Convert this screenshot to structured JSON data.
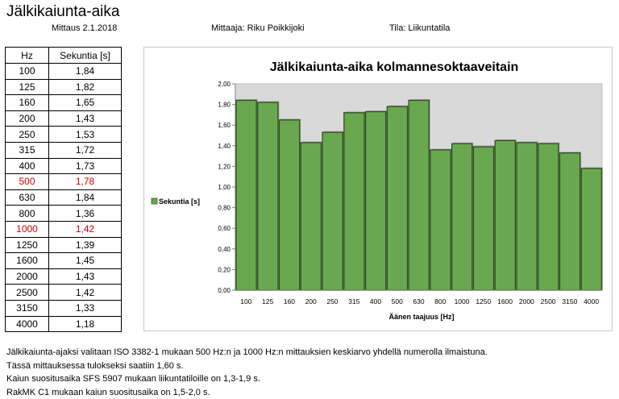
{
  "header": {
    "title": "Jälkikaiunta-aika",
    "date": "Mittaus 2.1.2018",
    "measurer": "Mittaaja: Riku Poikkijoki",
    "room": "Tila: Liikuntatila"
  },
  "table": {
    "col_hz": "Hz",
    "col_sec": "Sekuntia [s]",
    "rows": [
      {
        "hz": "100",
        "sec": "1,84"
      },
      {
        "hz": "125",
        "sec": "1,82"
      },
      {
        "hz": "160",
        "sec": "1,65"
      },
      {
        "hz": "200",
        "sec": "1,43"
      },
      {
        "hz": "250",
        "sec": "1,53"
      },
      {
        "hz": "315",
        "sec": "1,72"
      },
      {
        "hz": "400",
        "sec": "1,73"
      },
      {
        "hz": "500",
        "sec": "1,78"
      },
      {
        "hz": "630",
        "sec": "1,84"
      },
      {
        "hz": "800",
        "sec": "1,36"
      },
      {
        "hz": "1000",
        "sec": "1,42"
      },
      {
        "hz": "1250",
        "sec": "1,39"
      },
      {
        "hz": "1600",
        "sec": "1,45"
      },
      {
        "hz": "2000",
        "sec": "1,43"
      },
      {
        "hz": "2500",
        "sec": "1,42"
      },
      {
        "hz": "3150",
        "sec": "1,33"
      },
      {
        "hz": "4000",
        "sec": "1,18"
      }
    ],
    "highlight_color": "#d40000",
    "highlight_rows": [
      "500",
      "1000"
    ]
  },
  "chart_data": {
    "type": "bar",
    "title": "Jälkikaiunta-aika kolmannesoktaaveitain",
    "xlabel": "Äänen taajuus [Hz]",
    "ylabel": "",
    "categories": [
      "100",
      "125",
      "160",
      "200",
      "250",
      "315",
      "400",
      "500",
      "630",
      "800",
      "1000",
      "1250",
      "1600",
      "2000",
      "2500",
      "3150",
      "4000"
    ],
    "series": [
      {
        "name": "Sekuntia [s]",
        "values": [
          1.84,
          1.82,
          1.65,
          1.43,
          1.53,
          1.72,
          1.73,
          1.78,
          1.84,
          1.36,
          1.42,
          1.39,
          1.45,
          1.43,
          1.42,
          1.33,
          1.18
        ],
        "color": "#6aa84f"
      }
    ],
    "ylim": [
      0,
      2.0
    ],
    "yticks": [
      "0,00",
      "0,20",
      "0,40",
      "0,60",
      "0,80",
      "1,00",
      "1,20",
      "1,40",
      "1,60",
      "1,80",
      "2,00"
    ],
    "grid": false,
    "legend_position": "left",
    "plot_background": "#d9d9d9"
  },
  "notes": [
    "Jälkikaiunta-ajaksi valitaan ISO 3382-1 mukaan 500 Hz:n ja 1000 Hz:n mittauksien keskiarvo yhdellä numerolla ilmaistuna.",
    "Tässä mittauksessa tulokseksi saatiin  1,60 s.",
    "Kaiun suositusaika SFS 5907 mukaan liikuntatiloille on 1,3-1,9 s.",
    "RakMK C1 mukaan kaiun suositusaika on 1,5-2,0 s."
  ]
}
